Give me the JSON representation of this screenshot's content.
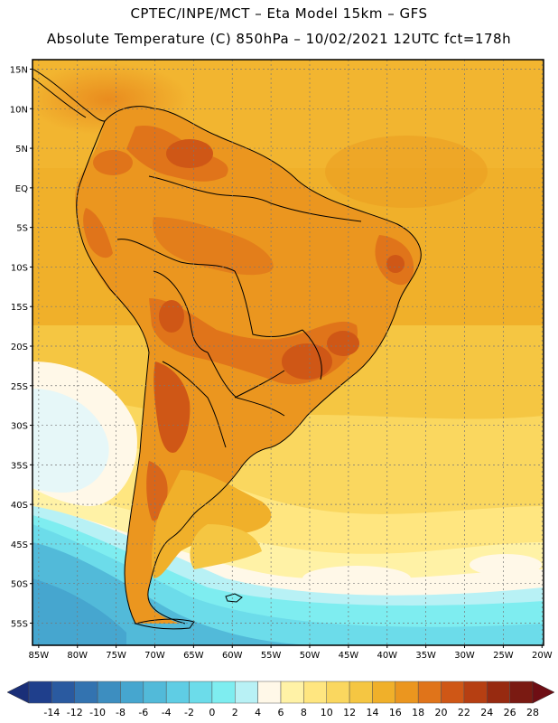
{
  "header": {
    "line1": "CPTEC/INPE/MCT –  Eta Model 15km – GFS",
    "line2": "Absolute Temperature (C) 850hPa – 10/02/2021 12UTC fct=178h"
  },
  "map": {
    "lat_labels": [
      "15N",
      "10N",
      "5N",
      "EQ",
      "5S",
      "10S",
      "15S",
      "20S",
      "25S",
      "30S",
      "35S",
      "40S",
      "45S",
      "50S",
      "55S"
    ],
    "lat_values": [
      15,
      10,
      5,
      0,
      -5,
      -10,
      -15,
      -20,
      -25,
      -30,
      -35,
      -40,
      -45,
      -50,
      -55
    ],
    "lon_labels": [
      "85W",
      "80W",
      "75W",
      "70W",
      "65W",
      "60W",
      "55W",
      "50W",
      "45W",
      "40W",
      "35W",
      "30W",
      "25W",
      "20W"
    ],
    "lon_values": [
      -85,
      -80,
      -75,
      -70,
      -65,
      -60,
      -55,
      -50,
      -45,
      -40,
      -35,
      -30,
      -25,
      -20
    ],
    "extent": {
      "lon_min": -85.8,
      "lon_max": -19.8,
      "lat_min": -57.8,
      "lat_max": 16.2
    }
  },
  "colorbar": {
    "labels": [
      "-14",
      "-12",
      "-10",
      "-8",
      "-6",
      "-4",
      "-2",
      "0",
      "2",
      "4",
      "6",
      "8",
      "10",
      "12",
      "14",
      "16",
      "18",
      "20",
      "22",
      "24",
      "26",
      "28"
    ],
    "colors": [
      "#1f3f8c",
      "#2a5aa0",
      "#3373b0",
      "#3d8ec0",
      "#46a6cf",
      "#52bad9",
      "#5fcde4",
      "#6cdcea",
      "#7eedf0",
      "#b8f1f5",
      "#fff8e8",
      "#fff2a6",
      "#ffe680",
      "#fad75f",
      "#f5c642",
      "#f0b02a",
      "#eb961f",
      "#e0741a",
      "#cf5716",
      "#b63f12",
      "#972a10",
      "#7a1a12"
    ],
    "low_arrow_color": "#1a2f78",
    "high_arrow_color": "#6e0e14"
  }
}
